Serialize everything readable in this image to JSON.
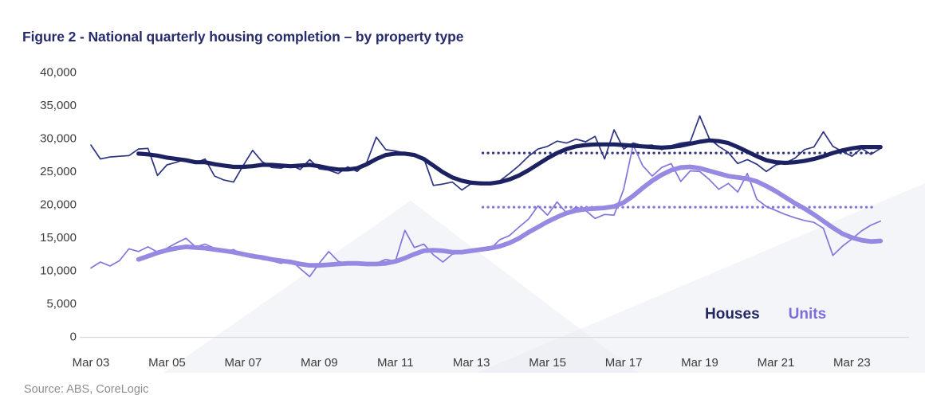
{
  "title": "Figure 2 - National quarterly housing completion – by property type",
  "source": {
    "text": "Source: ABS, CoreLogic"
  },
  "legend": {
    "houses_label": "Houses",
    "units_label": "Units"
  },
  "colors": {
    "title": "#262b6d",
    "houses_raw": "#2d3481",
    "houses_trend": "#1c2161",
    "units_raw": "#8276db",
    "units_trend": "#9589e2",
    "houses_avg_dotted": "#343a7e",
    "units_avg_dotted": "#8276db",
    "axis_text": "#3b3b3b",
    "axis_line": "#d9d9db",
    "source_text": "#8e8e90",
    "watermark": "#eaecf2"
  },
  "chart_data": {
    "type": "line",
    "title": "National quarterly housing completion - by property type",
    "x_axis": {
      "interval": "quarterly",
      "start_period": "Mar 2003",
      "end_period": "Dec 2023",
      "ticks": [
        {
          "label": "Mar 03",
          "quarter": 0
        },
        {
          "label": "Mar 05",
          "quarter": 8
        },
        {
          "label": "Mar 07",
          "quarter": 16
        },
        {
          "label": "Mar 09",
          "quarter": 24
        },
        {
          "label": "Mar 11",
          "quarter": 32
        },
        {
          "label": "Mar 13",
          "quarter": 40
        },
        {
          "label": "Mar 15",
          "quarter": 48
        },
        {
          "label": "Mar 17",
          "quarter": 56
        },
        {
          "label": "Mar 19",
          "quarter": 64
        },
        {
          "label": "Mar 21",
          "quarter": 72
        },
        {
          "label": "Mar 23",
          "quarter": 80
        }
      ]
    },
    "y_axis": {
      "min": 0,
      "max": 40000,
      "tick_step": 5000,
      "ticks": [
        {
          "value": 0,
          "label": "0"
        },
        {
          "value": 5000,
          "label": "5,000"
        },
        {
          "value": 10000,
          "label": "10,000"
        },
        {
          "value": 15000,
          "label": "15,000"
        },
        {
          "value": 20000,
          "label": "20,000"
        },
        {
          "value": 25000,
          "label": "25,000"
        },
        {
          "value": 30000,
          "label": "30,000"
        },
        {
          "value": 35000,
          "label": "35,000"
        },
        {
          "value": 40000,
          "label": "40,000"
        }
      ]
    },
    "grid": false,
    "legend_position": "bottom-right-inside",
    "series": [
      {
        "name": "Houses (quarterly)",
        "slug": "houses-quarterly-line",
        "color_key": "houses_raw",
        "stroke_width": 1.7,
        "start_index": 0,
        "values": [
          28900,
          26800,
          27100,
          27200,
          27300,
          28300,
          28400,
          24300,
          25900,
          26300,
          26800,
          26200,
          26800,
          24200,
          23600,
          23300,
          25800,
          28100,
          26400,
          25500,
          25400,
          25900,
          25200,
          26700,
          25300,
          25100,
          24600,
          25600,
          24900,
          26300,
          30100,
          28200,
          28000,
          27700,
          27400,
          26900,
          22800,
          23000,
          23300,
          22100,
          23100,
          23300,
          23200,
          23500,
          24600,
          25800,
          27200,
          28300,
          28700,
          29500,
          29200,
          29800,
          29400,
          30200,
          26800,
          31200,
          28300,
          29200,
          28800,
          28900,
          28200,
          28800,
          29200,
          29400,
          33300,
          29900,
          28700,
          27800,
          26100,
          26700,
          26000,
          24900,
          25900,
          26200,
          26900,
          28200,
          28600,
          30900,
          28700,
          27900,
          27200,
          28400,
          27500,
          28400
        ]
      },
      {
        "name": "Houses (trend)",
        "slug": "houses-trend-line",
        "color_key": "houses_trend",
        "stroke_width": 5.2,
        "start_index": 5,
        "values": [
          27600,
          27500,
          27300,
          27000,
          26800,
          26600,
          26300,
          26300,
          26000,
          25800,
          25600,
          25600,
          25700,
          25900,
          25900,
          25800,
          25700,
          25800,
          25900,
          25700,
          25400,
          25200,
          25200,
          25400,
          26000,
          26800,
          27400,
          27600,
          27600,
          27400,
          26800,
          25800,
          24800,
          24000,
          23500,
          23200,
          23100,
          23100,
          23300,
          23700,
          24300,
          25100,
          26000,
          26900,
          27700,
          28300,
          28700,
          28900,
          29000,
          29000,
          29000,
          28900,
          28800,
          28700,
          28600,
          28500,
          28600,
          28800,
          29100,
          29400,
          29600,
          29500,
          29200,
          28600,
          27900,
          27200,
          26600,
          26300,
          26200,
          26300,
          26500,
          26800,
          27200,
          27700,
          28100,
          28400,
          28600,
          28600,
          28600
        ]
      },
      {
        "name": "Units (quarterly)",
        "slug": "units-quarterly-line",
        "color_key": "units_raw",
        "stroke_width": 1.7,
        "start_index": 0,
        "values": [
          10300,
          11200,
          10600,
          11400,
          13200,
          12800,
          13500,
          12700,
          13300,
          14100,
          14800,
          13500,
          13900,
          13300,
          12700,
          13100,
          12200,
          12400,
          11600,
          11400,
          11000,
          11500,
          10200,
          9000,
          11000,
          12800,
          11300,
          10900,
          11100,
          10800,
          11000,
          11600,
          11300,
          16000,
          13400,
          13900,
          12300,
          11200,
          12400,
          12600,
          13100,
          13300,
          13200,
          14600,
          15200,
          16500,
          17700,
          19700,
          18300,
          20300,
          18600,
          19500,
          19000,
          17800,
          18400,
          18300,
          22200,
          28900,
          25800,
          24200,
          25500,
          26100,
          23400,
          25000,
          24900,
          23700,
          22200,
          23100,
          21800,
          24600,
          20700,
          19600,
          19000,
          18400,
          17900,
          17500,
          17200,
          16300,
          12200,
          13600,
          14700,
          15900,
          16800,
          17400
        ]
      },
      {
        "name": "Units (trend)",
        "slug": "units-trend-line",
        "color_key": "units_trend",
        "stroke_width": 5.8,
        "start_index": 5,
        "values": [
          11600,
          12100,
          12600,
          13000,
          13300,
          13500,
          13400,
          13300,
          13100,
          12900,
          12700,
          12400,
          12100,
          11900,
          11600,
          11400,
          11200,
          10900,
          10700,
          10700,
          10800,
          10900,
          11000,
          11000,
          10900,
          10900,
          11000,
          11300,
          11800,
          12400,
          12900,
          13000,
          12900,
          12700,
          12700,
          12900,
          13100,
          13300,
          13600,
          14100,
          14800,
          15700,
          16500,
          17300,
          18000,
          18600,
          19000,
          19200,
          19300,
          19400,
          19600,
          20200,
          21200,
          22400,
          23500,
          24400,
          25100,
          25500,
          25600,
          25400,
          25000,
          24600,
          24200,
          24000,
          23800,
          23400,
          22700,
          21900,
          21000,
          20100,
          19300,
          18400,
          17400,
          16400,
          15500,
          14900,
          14500,
          14300,
          14400
        ]
      }
    ],
    "reference_lines": [
      {
        "name": "Houses decade average",
        "slug": "houses-average-dotted-line",
        "value": 27700,
        "from_quarter": 41.2,
        "to_quarter": 82.6,
        "color_key": "houses_avg_dotted",
        "style": "dotted"
      },
      {
        "name": "Units decade average",
        "slug": "units-average-dotted-line",
        "value": 19500,
        "from_quarter": 41.2,
        "to_quarter": 82.2,
        "color_key": "units_avg_dotted",
        "style": "dotted"
      }
    ]
  }
}
